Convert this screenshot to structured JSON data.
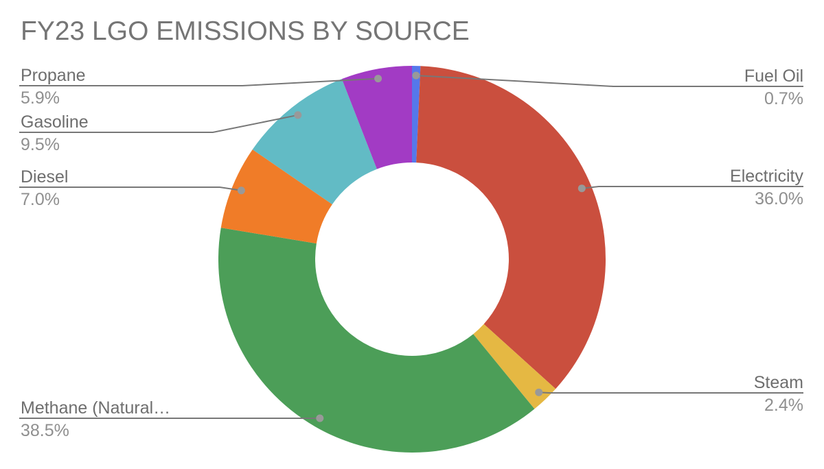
{
  "title": "FY23 LGO EMISSIONS BY SOURCE",
  "chart_data": {
    "type": "pie",
    "subtype": "donut",
    "title": "FY23 LGO EMISSIONS BY SOURCE",
    "values_are_percent": true,
    "start_angle_deg": 0,
    "direction": "clockwise",
    "hole_ratio": 0.5,
    "legend_style": "labeled-callouts",
    "slices": [
      {
        "label": "Fuel Oil",
        "value": 0.7,
        "pct_label": "0.7%",
        "color": "#5578EB",
        "side": "right"
      },
      {
        "label": "Electricity",
        "value": 36.0,
        "pct_label": "36.0%",
        "color": "#CA4F3E",
        "side": "right"
      },
      {
        "label": "Steam",
        "value": 2.4,
        "pct_label": "2.4%",
        "color": "#E5B843",
        "side": "right"
      },
      {
        "label": "Methane (Natural…",
        "value": 38.5,
        "pct_label": "38.5%",
        "color": "#4C9E58",
        "side": "left"
      },
      {
        "label": "Diesel",
        "value": 7.0,
        "pct_label": "7.0%",
        "color": "#F07C28",
        "side": "left"
      },
      {
        "label": "Gasoline",
        "value": 9.5,
        "pct_label": "9.5%",
        "color": "#62BBC5",
        "side": "left"
      },
      {
        "label": "Propane",
        "value": 5.9,
        "pct_label": "5.9%",
        "color": "#A23BC4",
        "side": "left"
      }
    ],
    "callout_colors": {
      "label_text": "#6e6e6e",
      "percent_text": "#8f8f8f",
      "leader_line": "#777777",
      "anchor_dot": "#999999",
      "title_text": "#757575"
    }
  }
}
